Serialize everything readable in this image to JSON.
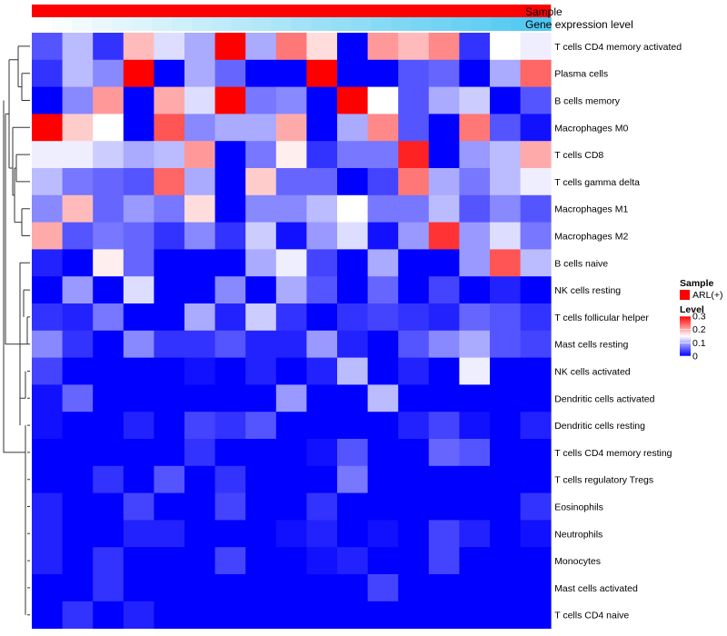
{
  "chart_data": {
    "type": "heatmap",
    "annotations": {
      "sample": {
        "title": "Sample",
        "color": "#ff0000"
      },
      "gene": {
        "title": "Gene expression level",
        "low_color": "#ffffff",
        "high_color": "#4fc8f0",
        "values": [
          0.0,
          0.04,
          0.08,
          0.12,
          0.16,
          0.2,
          0.24,
          0.28,
          0.32,
          0.36,
          0.4,
          0.44,
          0.48,
          0.52,
          0.56,
          0.6,
          0.64,
          0.68,
          0.72,
          0.76,
          0.8,
          0.84,
          0.88,
          0.92,
          0.96,
          1.0
        ]
      }
    },
    "rows": [
      "T cells CD4 memory activated",
      "Plasma cells",
      "B cells memory",
      "Macrophages M0",
      "T cells CD8",
      "T cells gamma delta",
      "Macrophages M1",
      "Macrophages M2",
      "B cells naive",
      "NK cells resting",
      "T cells follicular helper",
      "Mast cells resting",
      "NK cells activated",
      "Dendritic cells activated",
      "Dendritic cells resting",
      "T cells CD4 memory resting",
      "T cells regulatory  Tregs",
      "Eosinophils",
      "Neutrophils",
      "Monocytes",
      "Mast cells activated",
      "T cells CD4 naive"
    ],
    "values": [
      [
        0.05,
        0.11,
        0.03,
        0.19,
        0.13,
        0.1,
        0.3,
        0.1,
        0.23,
        0.17,
        0.0,
        0.21,
        0.19,
        0.22,
        0.03,
        0.15,
        0.14
      ],
      [
        0.03,
        0.11,
        0.08,
        0.3,
        0.0,
        0.1,
        0.06,
        0.0,
        0.0,
        0.3,
        0.0,
        0.0,
        0.05,
        0.06,
        0.0,
        0.1,
        0.24
      ],
      [
        0.0,
        0.08,
        0.21,
        0.0,
        0.2,
        0.13,
        0.3,
        0.07,
        0.08,
        0.0,
        0.3,
        0.15,
        0.05,
        0.1,
        0.12,
        0.0,
        0.05
      ],
      [
        0.3,
        0.18,
        0.15,
        0.0,
        0.25,
        0.08,
        0.1,
        0.1,
        0.2,
        0.0,
        0.1,
        0.22,
        0.05,
        0.0,
        0.23,
        0.05,
        0.01
      ],
      [
        0.14,
        0.14,
        0.12,
        0.1,
        0.11,
        0.21,
        0.0,
        0.07,
        0.16,
        0.03,
        0.07,
        0.07,
        0.28,
        0.0,
        0.09,
        0.11,
        0.2
      ],
      [
        0.11,
        0.07,
        0.06,
        0.05,
        0.24,
        0.1,
        0.0,
        0.18,
        0.06,
        0.06,
        0.0,
        0.04,
        0.23,
        0.1,
        0.07,
        0.11,
        0.14
      ],
      [
        0.08,
        0.19,
        0.06,
        0.09,
        0.07,
        0.17,
        0.0,
        0.08,
        0.08,
        0.11,
        0.15,
        0.07,
        0.07,
        0.11,
        0.05,
        0.08,
        0.05
      ],
      [
        0.2,
        0.05,
        0.07,
        0.06,
        0.03,
        0.08,
        0.03,
        0.12,
        0.01,
        0.09,
        0.13,
        0.01,
        0.09,
        0.27,
        0.09,
        0.13,
        0.07
      ],
      [
        0.02,
        0.0,
        0.16,
        0.06,
        0.0,
        0.0,
        0.0,
        0.1,
        0.14,
        0.04,
        0.0,
        0.1,
        0.0,
        0.0,
        0.09,
        0.25,
        0.11
      ],
      [
        0.0,
        0.09,
        0.0,
        0.13,
        0.0,
        0.0,
        0.08,
        0.0,
        0.1,
        0.05,
        0.0,
        0.06,
        0.0,
        0.04,
        0.0,
        0.02,
        0.0
      ],
      [
        0.03,
        0.02,
        0.07,
        0.0,
        0.0,
        0.1,
        0.02,
        0.12,
        0.03,
        0.0,
        0.03,
        0.04,
        0.03,
        0.02,
        0.06,
        0.05,
        0.03
      ],
      [
        0.08,
        0.03,
        0.0,
        0.08,
        0.03,
        0.03,
        0.05,
        0.02,
        0.02,
        0.09,
        0.02,
        0.0,
        0.05,
        0.08,
        0.1,
        0.05,
        0.04
      ],
      [
        0.04,
        0.0,
        0.0,
        0.0,
        0.0,
        0.01,
        0.0,
        0.02,
        0.0,
        0.02,
        0.11,
        0.0,
        0.02,
        0.0,
        0.14,
        0.0,
        0.0
      ],
      [
        0.01,
        0.06,
        0.0,
        0.0,
        0.0,
        0.0,
        0.0,
        0.0,
        0.09,
        0.0,
        0.0,
        0.11,
        0.0,
        0.0,
        0.0,
        0.0,
        0.0
      ],
      [
        0.01,
        0.0,
        0.0,
        0.02,
        0.0,
        0.04,
        0.03,
        0.05,
        0.0,
        0.0,
        0.0,
        0.0,
        0.02,
        0.04,
        0.01,
        0.0,
        0.02
      ],
      [
        0.0,
        0.0,
        0.0,
        0.0,
        0.0,
        0.03,
        0.0,
        0.0,
        0.0,
        0.01,
        0.05,
        0.0,
        0.0,
        0.06,
        0.05,
        0.0,
        0.0
      ],
      [
        0.0,
        0.0,
        0.03,
        0.0,
        0.05,
        0.0,
        0.03,
        0.0,
        0.0,
        0.0,
        0.07,
        0.0,
        0.0,
        0.0,
        0.0,
        0.0,
        0.0
      ],
      [
        0.02,
        0.0,
        0.0,
        0.04,
        0.0,
        0.0,
        0.04,
        0.0,
        0.0,
        0.03,
        0.0,
        0.0,
        0.0,
        0.0,
        0.0,
        0.0,
        0.03
      ],
      [
        0.02,
        0.0,
        0.0,
        0.02,
        0.02,
        0.0,
        0.0,
        0.0,
        0.01,
        0.02,
        0.0,
        0.01,
        0.0,
        0.04,
        0.02,
        0.0,
        0.01
      ],
      [
        0.02,
        0.0,
        0.03,
        0.0,
        0.0,
        0.0,
        0.04,
        0.0,
        0.0,
        0.01,
        0.02,
        0.0,
        0.0,
        0.04,
        0.0,
        0.0,
        0.0
      ],
      [
        0.0,
        0.0,
        0.03,
        0.0,
        0.0,
        0.0,
        0.0,
        0.0,
        0.0,
        0.0,
        0.0,
        0.04,
        0.0,
        0.0,
        0.0,
        0.0,
        0.0
      ],
      [
        0.0,
        0.03,
        0.0,
        0.02,
        0.0,
        0.0,
        0.0,
        0.0,
        0.0,
        0.0,
        0.0,
        0.0,
        0.0,
        0.0,
        0.0,
        0.0,
        0.0
      ]
    ],
    "color_scale": {
      "min": 0,
      "mid": 0.15,
      "max": 0.3,
      "low": "#0000ff",
      "mid_color": "#ffffff",
      "high": "#ff0000"
    },
    "legend": {
      "sample_title": "Sample",
      "sample_entry": "ARL(+)",
      "level_title": "Level",
      "ticks": [
        0.3,
        0.2,
        0.1,
        0
      ],
      "tick_labels": [
        "0.3",
        "0.2",
        "0.1",
        "0"
      ]
    },
    "dendrogram": "row clustering, left side"
  }
}
